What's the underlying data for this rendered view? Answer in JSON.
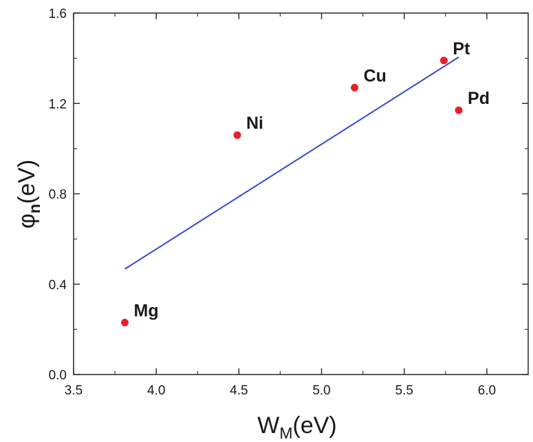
{
  "chart_data": {
    "type": "scatter",
    "xlabel": {
      "main": "W",
      "sub": "M",
      "suffix": "(eV)"
    },
    "ylabel": {
      "main": "φ",
      "sub": "n",
      "suffix": "(eV)"
    },
    "xlim": [
      3.5,
      6.25
    ],
    "ylim": [
      0.0,
      1.6
    ],
    "xticks": [
      3.5,
      4.0,
      4.5,
      5.0,
      5.5,
      6.0
    ],
    "xtick_labels": [
      "3.5",
      "4.0",
      "4.5",
      "5.0",
      "5.5",
      "6.0"
    ],
    "yticks": [
      0.0,
      0.4,
      0.8,
      1.2,
      1.6
    ],
    "ytick_labels": [
      "0.0",
      "0.4",
      "0.8",
      "1.2",
      "1.6"
    ],
    "grid": false,
    "points": [
      {
        "label": "Mg",
        "x": 3.81,
        "y": 0.23
      },
      {
        "label": "Ni",
        "x": 4.49,
        "y": 1.06
      },
      {
        "label": "Cu",
        "x": 5.2,
        "y": 1.27
      },
      {
        "label": "Pt",
        "x": 5.74,
        "y": 1.39
      },
      {
        "label": "Pd",
        "x": 5.83,
        "y": 1.17
      }
    ],
    "fit_line": {
      "x": [
        3.81,
        5.83
      ],
      "y": [
        0.467,
        1.405
      ]
    },
    "colors": {
      "points": "#e8202a",
      "fit_line": "#3548d0",
      "axes": "#333333"
    }
  }
}
